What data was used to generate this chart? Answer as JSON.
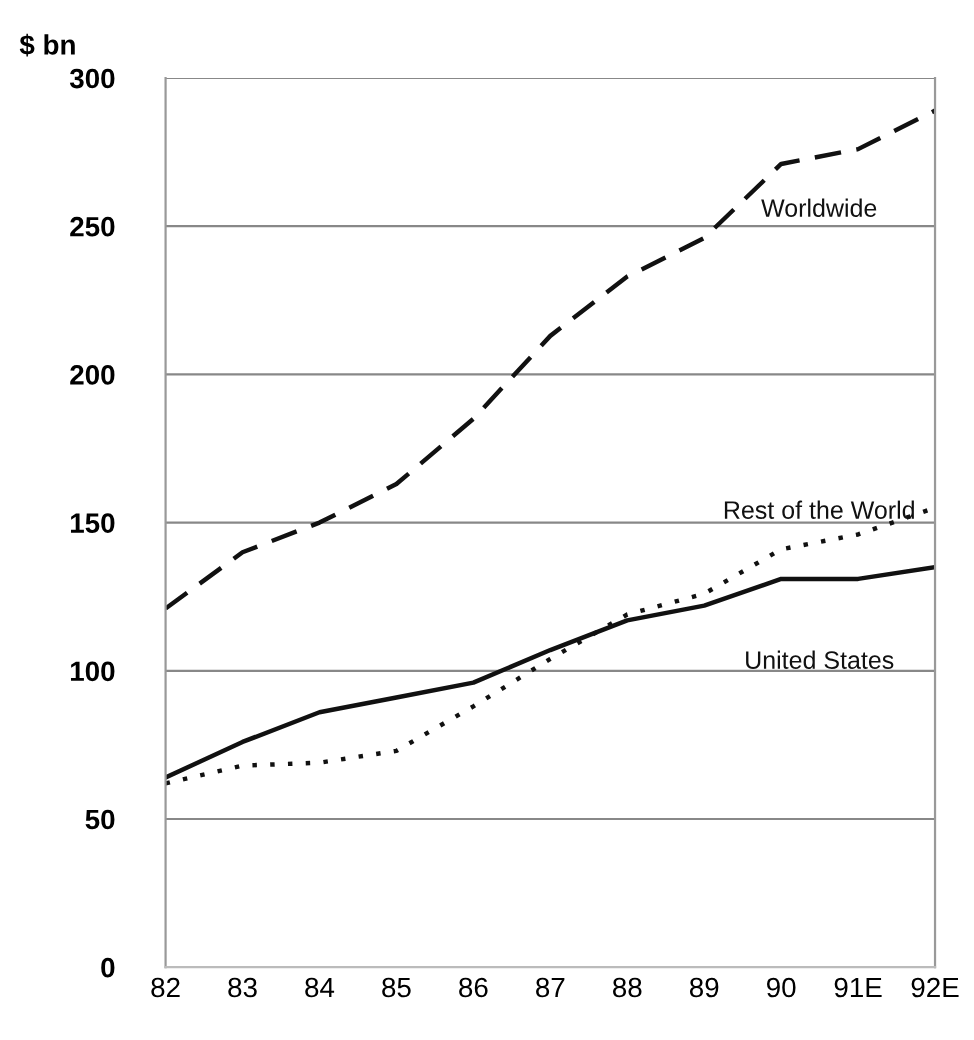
{
  "chart_data": {
    "type": "line",
    "ylabel": "$ bn",
    "categories": [
      "82",
      "83",
      "84",
      "85",
      "86",
      "87",
      "88",
      "89",
      "90",
      "91E",
      "92E"
    ],
    "series": [
      {
        "name": "Worldwide",
        "color": "#111111",
        "line_style": "dashed",
        "values": [
          121,
          140,
          150,
          163,
          185,
          213,
          233,
          246,
          271,
          276,
          289
        ]
      },
      {
        "name": "Rest of the World",
        "color": "#111111",
        "line_style": "dotted",
        "values": [
          62,
          68,
          69,
          73,
          88,
          104,
          119,
          126,
          141,
          146,
          155
        ]
      },
      {
        "name": "United States",
        "color": "#111111",
        "line_style": "solid",
        "values": [
          64,
          76,
          86,
          91,
          96,
          107,
          117,
          122,
          131,
          131,
          135
        ]
      }
    ],
    "ylim": [
      0,
      300
    ],
    "yticks": [
      0,
      50,
      100,
      150,
      200,
      250,
      300
    ],
    "grid": "y",
    "legend": false,
    "marker": "none"
  }
}
